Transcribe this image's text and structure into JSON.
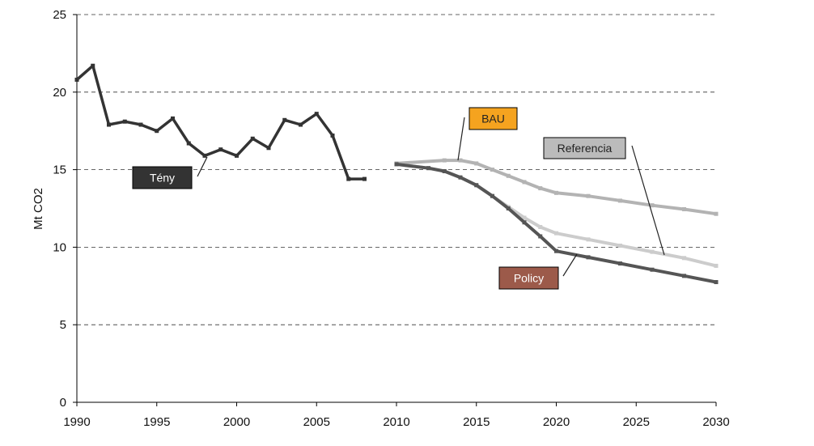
{
  "chart_data": {
    "type": "line",
    "ylabel": "Mt CO2",
    "xlabel": "",
    "title": "",
    "ylim": [
      0,
      25
    ],
    "xlim": [
      1990,
      2030
    ],
    "y_ticks": [
      0,
      5,
      10,
      15,
      20,
      25
    ],
    "x_ticks": [
      1990,
      1995,
      2000,
      2005,
      2010,
      2015,
      2020,
      2025,
      2030
    ],
    "grid": "horizontal dashed",
    "series": [
      {
        "name": "Tény",
        "color": "#333333",
        "x": [
          1990,
          1991,
          1992,
          1993,
          1994,
          1995,
          1996,
          1997,
          1998,
          1999,
          2000,
          2001,
          2002,
          2003,
          2004,
          2005,
          2006,
          2007,
          2008
        ],
        "y": [
          20.8,
          21.7,
          17.9,
          18.1,
          17.9,
          17.5,
          18.3,
          16.7,
          15.9,
          16.3,
          15.9,
          17.0,
          16.4,
          18.2,
          17.9,
          18.6,
          17.2,
          14.4,
          14.4
        ]
      },
      {
        "name": "BAU",
        "color": "#b3b3b3",
        "x": [
          2010,
          2013,
          2014,
          2015,
          2016,
          2017,
          2018,
          2019,
          2020,
          2022,
          2024,
          2026,
          2028,
          2030
        ],
        "y": [
          15.4,
          15.6,
          15.6,
          15.4,
          15.0,
          14.6,
          14.2,
          13.8,
          13.5,
          13.3,
          13.0,
          12.7,
          12.45,
          12.15
        ]
      },
      {
        "name": "Referencia",
        "color": "#cccccc",
        "x": [
          2010,
          2012,
          2013,
          2014,
          2015,
          2016,
          2017,
          2018,
          2019,
          2020,
          2022,
          2024,
          2026,
          2028,
          2030
        ],
        "y": [
          15.35,
          15.1,
          14.9,
          14.5,
          14.0,
          13.3,
          12.6,
          11.9,
          11.3,
          10.9,
          10.5,
          10.1,
          9.7,
          9.3,
          8.8
        ]
      },
      {
        "name": "Policy",
        "color": "#555555",
        "x": [
          2010,
          2012,
          2013,
          2014,
          2015,
          2016,
          2017,
          2018,
          2019,
          2020,
          2022,
          2024,
          2026,
          2028,
          2030
        ],
        "y": [
          15.35,
          15.1,
          14.9,
          14.5,
          14.0,
          13.3,
          12.5,
          11.6,
          10.7,
          9.75,
          9.35,
          8.95,
          8.55,
          8.15,
          7.75
        ]
      }
    ],
    "labels": [
      {
        "text": "Tény",
        "bg": "#333333",
        "fg": "#ffffff",
        "series": "Tény"
      },
      {
        "text": "BAU",
        "bg": "#f5a31f",
        "fg": "#222222",
        "series": "BAU"
      },
      {
        "text": "Referencia",
        "bg": "#bbbbbb",
        "fg": "#222222",
        "series": "Referencia"
      },
      {
        "text": "Policy",
        "bg": "#9c5a4a",
        "fg": "#ffffff",
        "series": "Policy"
      }
    ]
  }
}
